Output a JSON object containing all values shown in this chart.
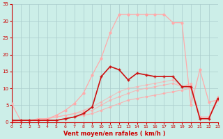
{
  "x": [
    0,
    1,
    2,
    3,
    4,
    5,
    6,
    7,
    8,
    9,
    10,
    11,
    12,
    13,
    14,
    15,
    16,
    17,
    18,
    19,
    20,
    21,
    22,
    23
  ],
  "line_rafales": [
    5.5,
    0.5,
    0.5,
    0.5,
    1.0,
    2.0,
    3.5,
    5.5,
    8.5,
    14.0,
    19.0,
    26.5,
    32.0,
    32.0,
    32.0,
    32.0,
    32.0,
    32.0,
    29.5,
    29.5,
    5.0,
    15.5,
    6.0,
    6.5
  ],
  "line_moyen_dark": [
    0.5,
    0.5,
    0.5,
    0.5,
    0.5,
    0.5,
    1.0,
    1.5,
    2.5,
    4.5,
    13.5,
    16.5,
    15.5,
    12.5,
    14.5,
    14.0,
    13.5,
    13.5,
    13.5,
    10.5,
    10.5,
    1.0,
    1.0,
    7.0
  ],
  "line_lin1": [
    0.0,
    0.5,
    0.5,
    0.5,
    0.5,
    0.5,
    1.0,
    1.5,
    2.0,
    2.5,
    3.5,
    4.5,
    5.5,
    6.5,
    7.0,
    7.5,
    8.0,
    8.5,
    9.0,
    9.5,
    10.0,
    1.0,
    1.0,
    6.5
  ],
  "line_lin2": [
    0.0,
    0.5,
    0.5,
    1.0,
    1.0,
    1.5,
    2.0,
    2.5,
    3.0,
    3.5,
    5.0,
    6.5,
    7.5,
    8.5,
    9.5,
    10.0,
    10.5,
    11.0,
    11.5,
    10.5,
    11.0,
    1.5,
    1.5,
    7.0
  ],
  "line_lin3": [
    0.0,
    0.5,
    0.5,
    1.0,
    1.0,
    1.5,
    2.0,
    2.5,
    3.5,
    4.5,
    6.0,
    7.5,
    9.0,
    10.0,
    10.5,
    11.0,
    11.5,
    12.0,
    12.5,
    10.5,
    11.5,
    1.5,
    1.5,
    7.5
  ],
  "xlabel": "Vent moyen/en rafales ( km/h )",
  "xlim": [
    0,
    23
  ],
  "ylim": [
    0,
    35
  ],
  "yticks": [
    0,
    5,
    10,
    15,
    20,
    25,
    30,
    35
  ],
  "xticks": [
    0,
    1,
    2,
    3,
    4,
    5,
    6,
    7,
    8,
    9,
    10,
    11,
    12,
    13,
    14,
    15,
    16,
    17,
    18,
    19,
    20,
    21,
    22,
    23
  ],
  "bg_color": "#cceee8",
  "grid_color": "#aacccc",
  "tick_color": "#cc0000",
  "label_color": "#cc0000",
  "color_light_pink": "#ffaaaa",
  "color_dark_red": "#cc1111",
  "color_mid_pink": "#ee6666"
}
